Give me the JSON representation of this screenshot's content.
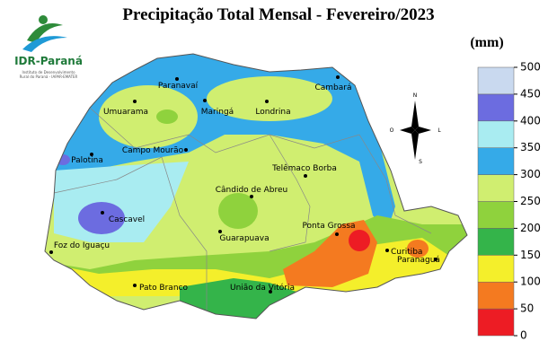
{
  "title": "Precipitação Total Mensal - Fevereiro/2023",
  "logo": {
    "name": "IDR-Paraná",
    "subtitle": [
      "Instituto de Desenvolvimento",
      "Rural do Paraná - IAPAR-EMATER"
    ]
  },
  "compass": [
    "N",
    "O",
    "L",
    "S"
  ],
  "legend": {
    "unit": "(mm)",
    "ticks": [
      0,
      50,
      100,
      150,
      200,
      250,
      300,
      350,
      400,
      450,
      500
    ],
    "colors": [
      "#ed1c24",
      "#f47a20",
      "#f4ef2b",
      "#34b44a",
      "#8fd23d",
      "#d0ee70",
      "#35aae8",
      "#a9ecf1",
      "#6c6ce0",
      "#c9d9ef"
    ]
  },
  "cities": [
    "Paranavaí",
    "Umuarama",
    "Maringá",
    "Londrina",
    "Cambará",
    "Campo Mourão",
    "Palotina",
    "Telêmaco Borba",
    "Cândido de Abreu",
    "Cascavel",
    "Guarapuava",
    "Ponta Grossa",
    "Foz do Iguaçu",
    "Curitiba",
    "Paranaguá",
    "Pato Branco",
    "União da Vitória"
  ]
}
